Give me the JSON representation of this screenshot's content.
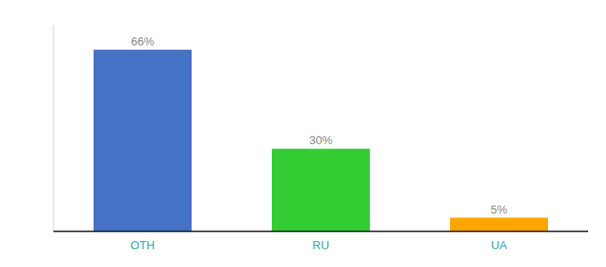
{
  "chart_data": {
    "type": "bar",
    "categories": [
      "OTH",
      "RU",
      "UA"
    ],
    "values": [
      66,
      30,
      5
    ],
    "value_labels": [
      "66%",
      "30%",
      "5%"
    ],
    "colors": [
      "#4472C4",
      "#33CC33",
      "#FFA500"
    ],
    "ylim": [
      0,
      75
    ],
    "data_labels": true,
    "tick_labels": "x",
    "grid": false
  }
}
